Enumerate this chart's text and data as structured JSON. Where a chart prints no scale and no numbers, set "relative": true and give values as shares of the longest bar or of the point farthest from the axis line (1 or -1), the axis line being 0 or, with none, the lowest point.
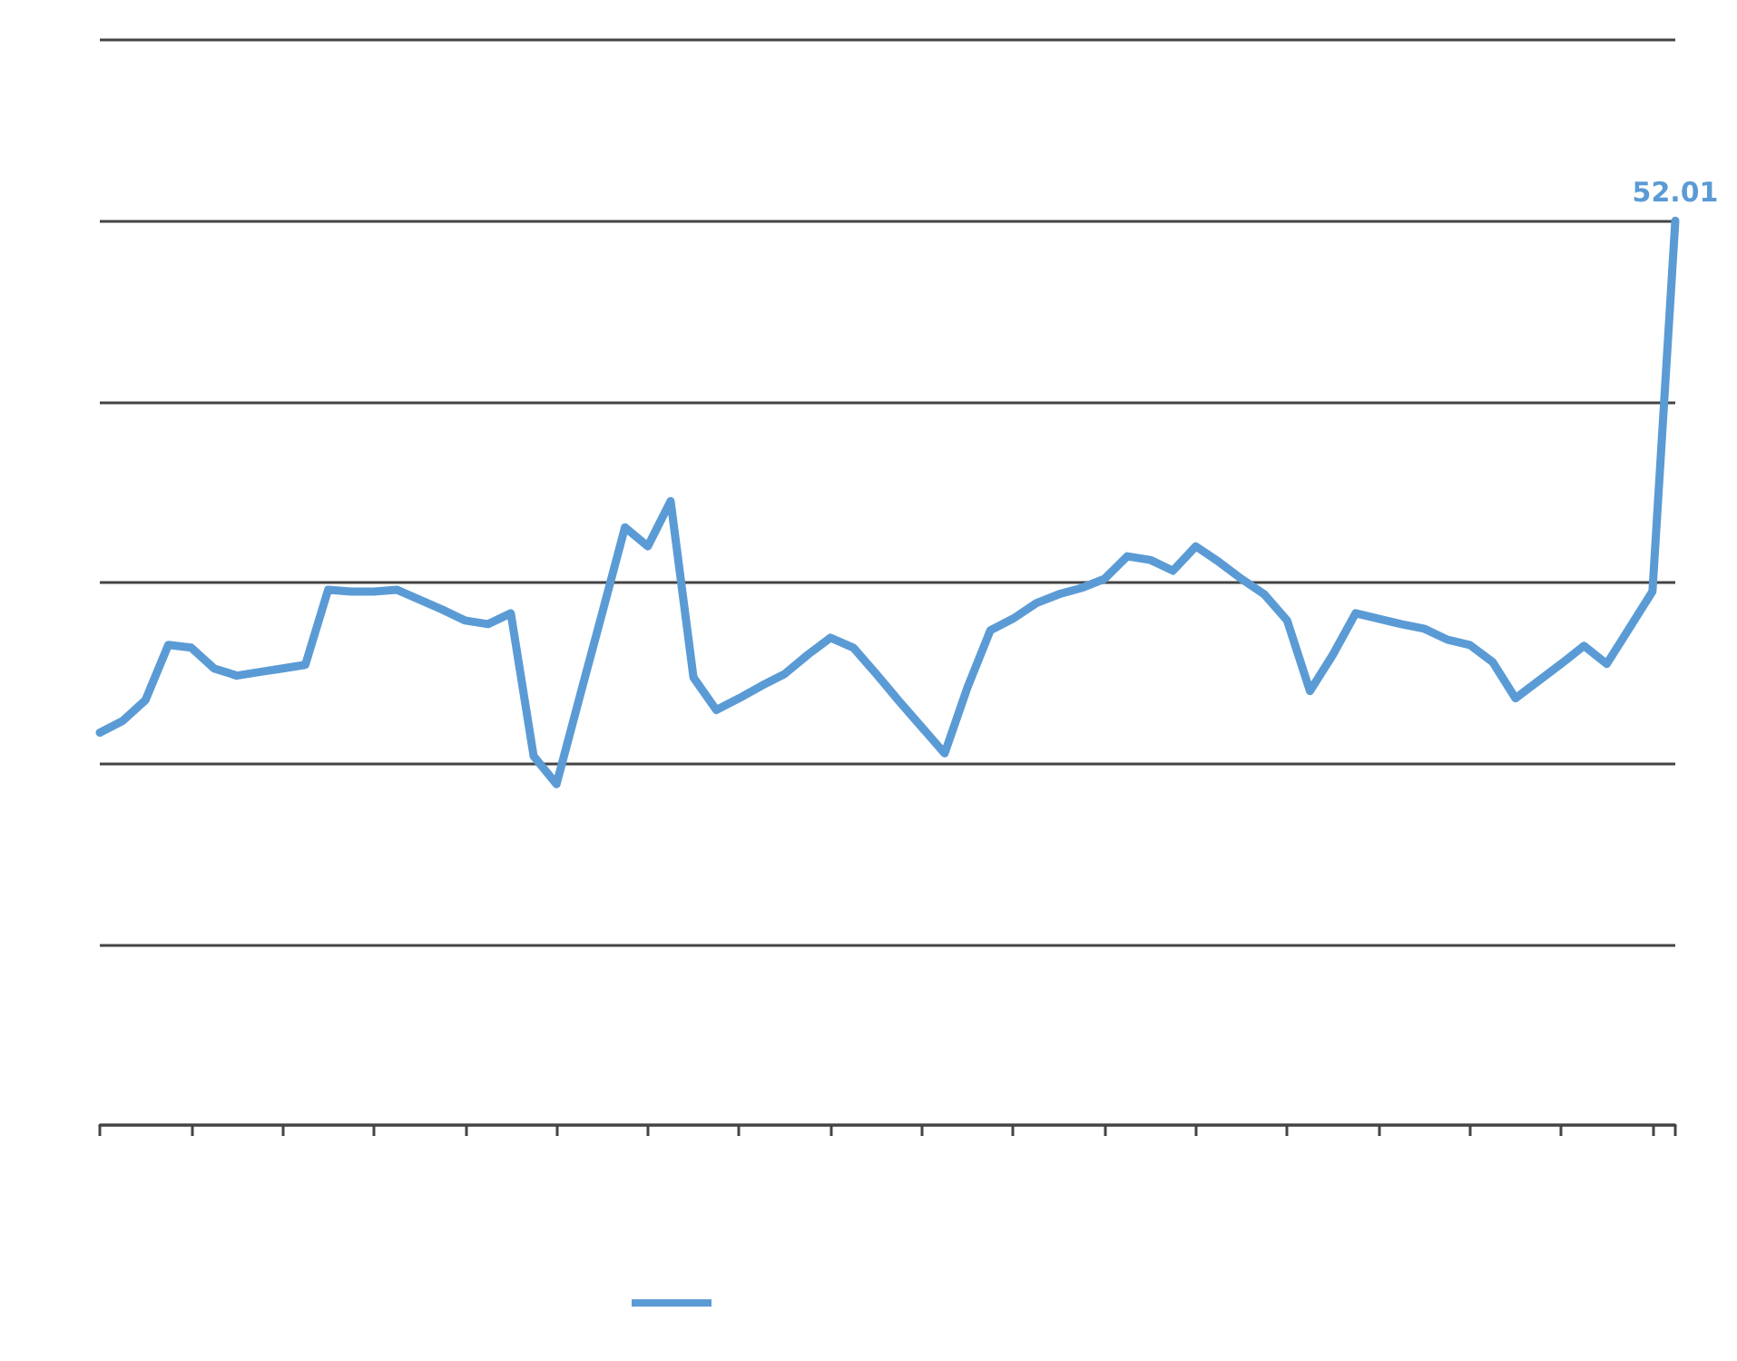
{
  "chart_data": {
    "type": "line",
    "relative": true,
    "categories": [
      null,
      null,
      null,
      null,
      null,
      null,
      null,
      null,
      null,
      null,
      null,
      null,
      null,
      null,
      null,
      null,
      null,
      null,
      null,
      null,
      null,
      null,
      null,
      null,
      null,
      null,
      null,
      null,
      null,
      null,
      null,
      null,
      null,
      null,
      null,
      null,
      null,
      null,
      null,
      null,
      null,
      null,
      null,
      null,
      null,
      null,
      null,
      null,
      null,
      null,
      null,
      null,
      null,
      null,
      null,
      null,
      null,
      null,
      null,
      null,
      null,
      null,
      null,
      null,
      null,
      null,
      null,
      null,
      null,
      null
    ],
    "series": [
      {
        "color": "#5b9bd5",
        "values": [
          0.434,
          0.447,
          0.47,
          0.531,
          0.528,
          0.505,
          0.497,
          0.501,
          0.505,
          0.509,
          0.592,
          0.59,
          0.59,
          0.592,
          0.581,
          0.57,
          0.558,
          0.554,
          0.566,
          0.408,
          0.377,
          0.472,
          0.566,
          0.661,
          0.64,
          0.69,
          0.495,
          0.459,
          0.472,
          0.486,
          0.499,
          0.52,
          0.539,
          0.528,
          0.499,
          0.469,
          0.44,
          0.411,
          0.484,
          0.547,
          0.56,
          0.577,
          0.587,
          0.594,
          0.604,
          0.629,
          0.625,
          0.613,
          0.64,
          0.623,
          0.604,
          0.587,
          0.558,
          0.48,
          0.52,
          0.566,
          0.56,
          0.554,
          0.549,
          0.537,
          0.531,
          0.512,
          0.472,
          0.491,
          0.51,
          0.53,
          0.51,
          0.55,
          0.59,
          1
        ]
      }
    ],
    "annotations": [
      {
        "text": "52.01",
        "y": 1
      }
    ],
    "grid": "y",
    "marker": "none",
    "line_style": "solid"
  }
}
